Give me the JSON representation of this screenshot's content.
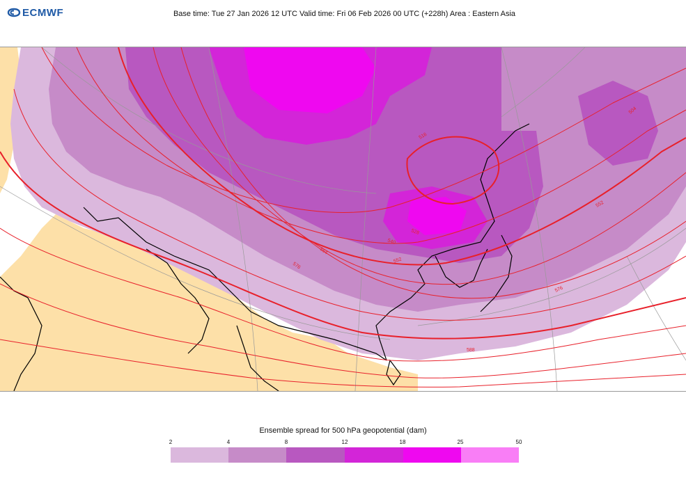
{
  "brand": {
    "name": "ECMWF",
    "color": "#1f5aa6"
  },
  "header": {
    "text": "Base time: Tue 27 Jan 2026 12 UTC Valid time: Fri 06 Feb 2026 00 UTC (+228h) Area : Eastern Asia"
  },
  "map": {
    "region": "Eastern Asia",
    "land_color": "#fde0a8",
    "contour_color": "#e8202a",
    "contour_labels": [
      "516",
      "528",
      "540",
      "552",
      "564",
      "576",
      "588",
      "504",
      "576",
      "552"
    ]
  },
  "legend": {
    "title": "Ensemble spread for 500 hPa geopotential (dam)",
    "ticks": [
      "2",
      "4",
      "8",
      "12",
      "18",
      "25",
      "50"
    ],
    "colors": [
      "#dbb8dd",
      "#c68bc8",
      "#b858c0",
      "#d325d8",
      "#ef08f0",
      "#f97ef6"
    ]
  }
}
